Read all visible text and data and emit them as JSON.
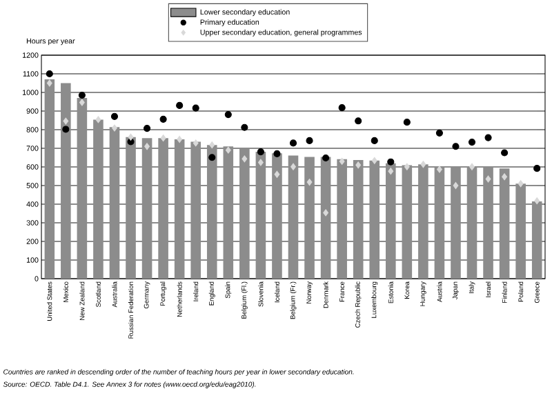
{
  "chart_data": {
    "type": "bar",
    "ylabel": "Hours per year",
    "categories": [
      "United States",
      "Mexico",
      "New Zealand",
      "Scotland",
      "Australia",
      "Russian Federation",
      "Germany",
      "Portugal",
      "Netherlands",
      "Ireland",
      "England",
      "Spain",
      "Belgium (Fl.)",
      "Slovenia",
      "Iceland",
      "Belgium (Fr.)",
      "Norway",
      "Denmark",
      "France",
      "Czech Republic",
      "Luxembourg",
      "Estonia",
      "Korea",
      "Hungary",
      "Austria",
      "Japan",
      "Italy",
      "Israel",
      "Finland",
      "Poland",
      "Greece"
    ],
    "series": [
      {
        "name": "Lower secondary education",
        "color": "#8c8c8c",
        "values": [
          1070,
          1050,
          970,
          854,
          814,
          760,
          755,
          755,
          748,
          735,
          718,
          710,
          698,
          681,
          673,
          661,
          654,
          654,
          642,
          637,
          634,
          619,
          609,
          614,
          599,
          602,
          601,
          598,
          592,
          510,
          415
        ]
      },
      {
        "name": "Primary education",
        "type": "scatter",
        "marker": "circle",
        "color": "#000000",
        "values": [
          1100,
          802,
          985,
          null,
          871,
          735,
          807,
          856,
          930,
          916,
          651,
          881,
          812,
          681,
          671,
          728,
          741,
          648,
          918,
          847,
          741,
          627,
          840,
          null,
          782,
          710,
          733,
          757,
          676,
          null,
          592
        ]
      },
      {
        "name": "Upper secondary education, general programmes",
        "type": "scatter",
        "marker": "diamond",
        "color": "#d9d9d9",
        "values": [
          1050,
          846,
          946,
          854,
          809,
          760,
          710,
          755,
          748,
          728,
          718,
          690,
          643,
          624,
          560,
          601,
          518,
          354,
          630,
          610,
          634,
          577,
          601,
          614,
          587,
          500,
          601,
          535,
          547,
          510,
          418
        ]
      }
    ],
    "ylim": [
      0,
      1200
    ],
    "yticks": [
      0,
      100,
      200,
      300,
      400,
      500,
      600,
      700,
      800,
      900,
      1000,
      1100,
      1200
    ],
    "grid": "y",
    "legend": "top",
    "annotations": [
      "Countries are ranked in descending order of the number of teaching hours per year in lower secondary education.",
      "Source:  OECD. Table D4.1. See Annex 3 for notes (www.oecd.org/edu/eag2010)."
    ]
  }
}
